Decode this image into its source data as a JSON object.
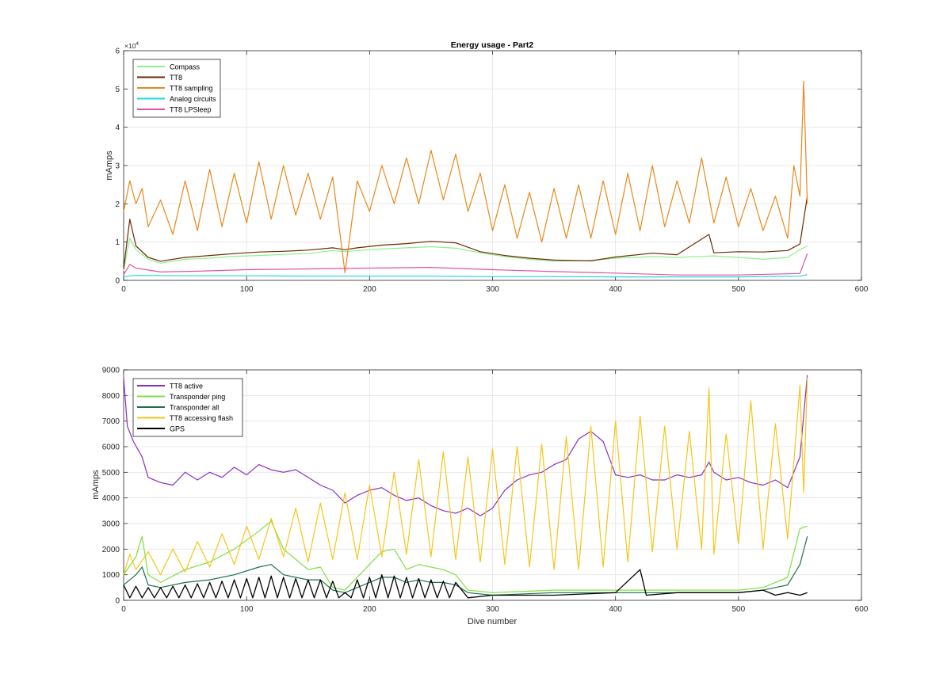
{
  "chart_data": [
    {
      "type": "line",
      "title": "Energy usage - Part2",
      "xlabel": "",
      "ylabel": "mAmps",
      "xlim": [
        0,
        600
      ],
      "ylim": [
        0,
        60000
      ],
      "x_ticks": [
        "0",
        "100",
        "200",
        "300",
        "400",
        "500",
        "600"
      ],
      "y_ticks": [
        "0",
        "1",
        "2",
        "3",
        "4",
        "5",
        "6"
      ],
      "y_exponent_base": "×10",
      "y_exponent_power": "4",
      "grid": true,
      "legend_position": "top-left",
      "series": [
        {
          "name": "Compass",
          "color": "#90ee90",
          "x": [
            0,
            5,
            10,
            20,
            30,
            50,
            70,
            90,
            110,
            130,
            150,
            170,
            180,
            190,
            210,
            230,
            250,
            270,
            290,
            310,
            330,
            350,
            380,
            400,
            430,
            450,
            480,
            500,
            520,
            540,
            550,
            556
          ],
          "y": [
            2500,
            11000,
            8000,
            5500,
            4500,
            5500,
            5800,
            6300,
            6500,
            6800,
            7000,
            7800,
            7500,
            7800,
            8200,
            8500,
            8800,
            8400,
            7200,
            6200,
            5500,
            5000,
            5200,
            5800,
            6200,
            6000,
            6400,
            6000,
            5500,
            6000,
            8000,
            9000
          ]
        },
        {
          "name": "TT8",
          "color": "#6b2a00",
          "x": [
            0,
            5,
            10,
            20,
            30,
            50,
            70,
            90,
            110,
            130,
            150,
            170,
            180,
            190,
            210,
            230,
            250,
            270,
            290,
            310,
            330,
            350,
            380,
            400,
            430,
            450,
            476,
            480,
            500,
            520,
            540,
            550,
            556
          ],
          "y": [
            3000,
            16000,
            9000,
            6000,
            5000,
            6000,
            6500,
            7000,
            7400,
            7600,
            7900,
            8500,
            8000,
            8500,
            9200,
            9600,
            10200,
            9800,
            7500,
            6500,
            5800,
            5300,
            5100,
            6100,
            7100,
            6700,
            12000,
            7200,
            7500,
            7400,
            7800,
            9500,
            22000
          ]
        },
        {
          "name": "TT8 sampling",
          "color": "#e8881a",
          "x": [
            0,
            5,
            10,
            15,
            20,
            30,
            40,
            50,
            60,
            70,
            80,
            90,
            100,
            110,
            120,
            130,
            140,
            150,
            160,
            170,
            180,
            190,
            200,
            210,
            220,
            230,
            240,
            250,
            260,
            270,
            280,
            290,
            300,
            310,
            320,
            330,
            340,
            350,
            360,
            370,
            380,
            390,
            400,
            410,
            420,
            430,
            440,
            450,
            460,
            470,
            480,
            490,
            500,
            510,
            520,
            530,
            540,
            545,
            550,
            553,
            556
          ],
          "y": [
            18000,
            26000,
            20000,
            24000,
            14000,
            21000,
            12000,
            26000,
            13000,
            29000,
            14000,
            28000,
            15000,
            31000,
            16000,
            30000,
            17000,
            28000,
            16000,
            27000,
            2000,
            26000,
            18000,
            30000,
            20000,
            32000,
            20000,
            34000,
            21000,
            33000,
            18000,
            28000,
            13000,
            25000,
            11000,
            23000,
            10000,
            24000,
            11000,
            25000,
            11000,
            26000,
            12000,
            28000,
            13000,
            30000,
            14000,
            26000,
            15000,
            32000,
            15000,
            27000,
            14000,
            24000,
            13000,
            22000,
            11000,
            30000,
            22000,
            52000,
            20000
          ]
        },
        {
          "name": "Analog circuits",
          "color": "#22d6e0",
          "x": [
            0,
            10,
            50,
            100,
            150,
            200,
            250,
            300,
            350,
            400,
            450,
            500,
            550,
            556
          ],
          "y": [
            1000,
            1300,
            1200,
            1200,
            1100,
            1100,
            1100,
            1000,
            1000,
            900,
            900,
            900,
            1100,
            1500
          ]
        },
        {
          "name": "TT8 LPSleep",
          "color": "#e0559e",
          "x": [
            0,
            5,
            10,
            30,
            60,
            100,
            150,
            200,
            250,
            300,
            350,
            400,
            450,
            500,
            550,
            556
          ],
          "y": [
            1500,
            4200,
            3200,
            2200,
            2400,
            2800,
            3000,
            3200,
            3400,
            2800,
            2300,
            1900,
            1400,
            1400,
            1800,
            7000
          ]
        }
      ]
    },
    {
      "type": "line",
      "title": "",
      "xlabel": "Dive number",
      "ylabel": "mAmps",
      "xlim": [
        0,
        600
      ],
      "ylim": [
        0,
        9000
      ],
      "x_ticks": [
        "0",
        "100",
        "200",
        "300",
        "400",
        "500",
        "600"
      ],
      "y_ticks": [
        "0",
        "1000",
        "2000",
        "3000",
        "4000",
        "5000",
        "6000",
        "7000",
        "8000",
        "9000"
      ],
      "grid": true,
      "legend_position": "top-left",
      "series": [
        {
          "name": "TT8 active",
          "color": "#8a2fbe",
          "x": [
            0,
            3,
            8,
            15,
            20,
            30,
            40,
            50,
            60,
            70,
            80,
            90,
            100,
            110,
            120,
            130,
            140,
            150,
            160,
            170,
            180,
            190,
            200,
            210,
            220,
            230,
            240,
            250,
            260,
            270,
            280,
            290,
            300,
            310,
            320,
            330,
            340,
            350,
            360,
            370,
            380,
            390,
            400,
            410,
            420,
            430,
            440,
            450,
            460,
            470,
            476,
            480,
            490,
            500,
            510,
            520,
            530,
            540,
            550,
            556
          ],
          "y": [
            8700,
            6800,
            6200,
            5600,
            4800,
            4600,
            4500,
            5000,
            4700,
            5000,
            4800,
            5200,
            4900,
            5300,
            5100,
            5000,
            5100,
            4800,
            4500,
            4300,
            3800,
            4100,
            4300,
            4400,
            4100,
            3900,
            4000,
            3700,
            3500,
            3400,
            3600,
            3300,
            3600,
            4300,
            4700,
            4900,
            5000,
            5300,
            5500,
            6300,
            6600,
            6200,
            4900,
            4800,
            4900,
            4700,
            4700,
            4900,
            4800,
            4900,
            5400,
            5000,
            4700,
            4800,
            4600,
            4500,
            4700,
            4400,
            5600,
            8800
          ]
        },
        {
          "name": "Transponder ping",
          "color": "#7ee040",
          "x": [
            0,
            10,
            15,
            20,
            30,
            50,
            70,
            90,
            110,
            120,
            130,
            150,
            160,
            170,
            180,
            190,
            200,
            210,
            220,
            230,
            240,
            250,
            260,
            270,
            280,
            300,
            350,
            400,
            450,
            500,
            520,
            530,
            540,
            550,
            556
          ],
          "y": [
            1000,
            1700,
            2500,
            1000,
            700,
            1200,
            1500,
            2000,
            2700,
            3100,
            2000,
            1200,
            1300,
            500,
            400,
            900,
            1400,
            1900,
            2000,
            1200,
            1400,
            1300,
            1200,
            1000,
            400,
            300,
            400,
            400,
            400,
            400,
            500,
            700,
            900,
            2800,
            2900
          ]
        },
        {
          "name": "Transponder all",
          "color": "#1f6f4a",
          "x": [
            0,
            10,
            15,
            20,
            30,
            50,
            70,
            90,
            110,
            120,
            130,
            150,
            160,
            170,
            180,
            190,
            200,
            210,
            220,
            230,
            240,
            250,
            260,
            270,
            280,
            300,
            350,
            400,
            450,
            500,
            520,
            530,
            540,
            550,
            556
          ],
          "y": [
            600,
            1000,
            1300,
            600,
            500,
            700,
            800,
            1000,
            1300,
            1400,
            1000,
            800,
            800,
            400,
            300,
            500,
            700,
            900,
            900,
            700,
            800,
            700,
            700,
            600,
            300,
            200,
            300,
            300,
            300,
            300,
            400,
            500,
            600,
            1400,
            2500
          ]
        },
        {
          "name": "TT8 accessing flash",
          "color": "#f5c518",
          "x": [
            0,
            5,
            10,
            20,
            30,
            40,
            50,
            60,
            70,
            80,
            90,
            100,
            110,
            120,
            130,
            140,
            150,
            160,
            170,
            180,
            190,
            200,
            210,
            220,
            230,
            240,
            250,
            260,
            270,
            280,
            290,
            300,
            310,
            320,
            330,
            340,
            350,
            360,
            370,
            380,
            390,
            400,
            410,
            420,
            430,
            440,
            450,
            460,
            470,
            476,
            480,
            490,
            500,
            510,
            520,
            530,
            540,
            550,
            553,
            556
          ],
          "y": [
            1000,
            1800,
            1200,
            1900,
            1000,
            2000,
            1100,
            2300,
            1300,
            2600,
            1400,
            2900,
            1600,
            3200,
            1700,
            3600,
            1500,
            3800,
            1600,
            4200,
            1600,
            4500,
            1700,
            5000,
            1800,
            5500,
            1700,
            5800,
            1600,
            5600,
            1500,
            5900,
            1400,
            6000,
            1300,
            6100,
            1200,
            6400,
            1200,
            6800,
            1300,
            7000,
            1500,
            7200,
            1900,
            6800,
            2000,
            6600,
            2000,
            8300,
            1800,
            6500,
            2200,
            7800,
            2000,
            6900,
            2400,
            8400,
            4200,
            8700
          ]
        },
        {
          "name": "GPS",
          "color": "#000000",
          "x": [
            0,
            5,
            10,
            15,
            20,
            25,
            30,
            35,
            40,
            45,
            50,
            55,
            60,
            65,
            70,
            75,
            80,
            85,
            90,
            95,
            100,
            105,
            110,
            115,
            120,
            125,
            130,
            135,
            140,
            145,
            150,
            155,
            160,
            165,
            170,
            175,
            180,
            185,
            190,
            195,
            200,
            205,
            210,
            215,
            220,
            225,
            230,
            235,
            240,
            245,
            250,
            255,
            260,
            265,
            270,
            280,
            300,
            350,
            400,
            420,
            425,
            450,
            500,
            520,
            530,
            540,
            550,
            556
          ],
          "y": [
            600,
            100,
            550,
            100,
            500,
            100,
            500,
            100,
            550,
            100,
            600,
            100,
            650,
            100,
            700,
            100,
            750,
            100,
            800,
            100,
            850,
            100,
            900,
            100,
            950,
            100,
            900,
            100,
            850,
            100,
            800,
            100,
            800,
            100,
            750,
            100,
            300,
            100,
            800,
            100,
            900,
            100,
            1000,
            100,
            950,
            100,
            900,
            100,
            850,
            100,
            800,
            100,
            750,
            100,
            700,
            100,
            200,
            200,
            300,
            1200,
            200,
            300,
            300,
            400,
            200,
            300,
            200,
            300
          ]
        }
      ]
    }
  ]
}
